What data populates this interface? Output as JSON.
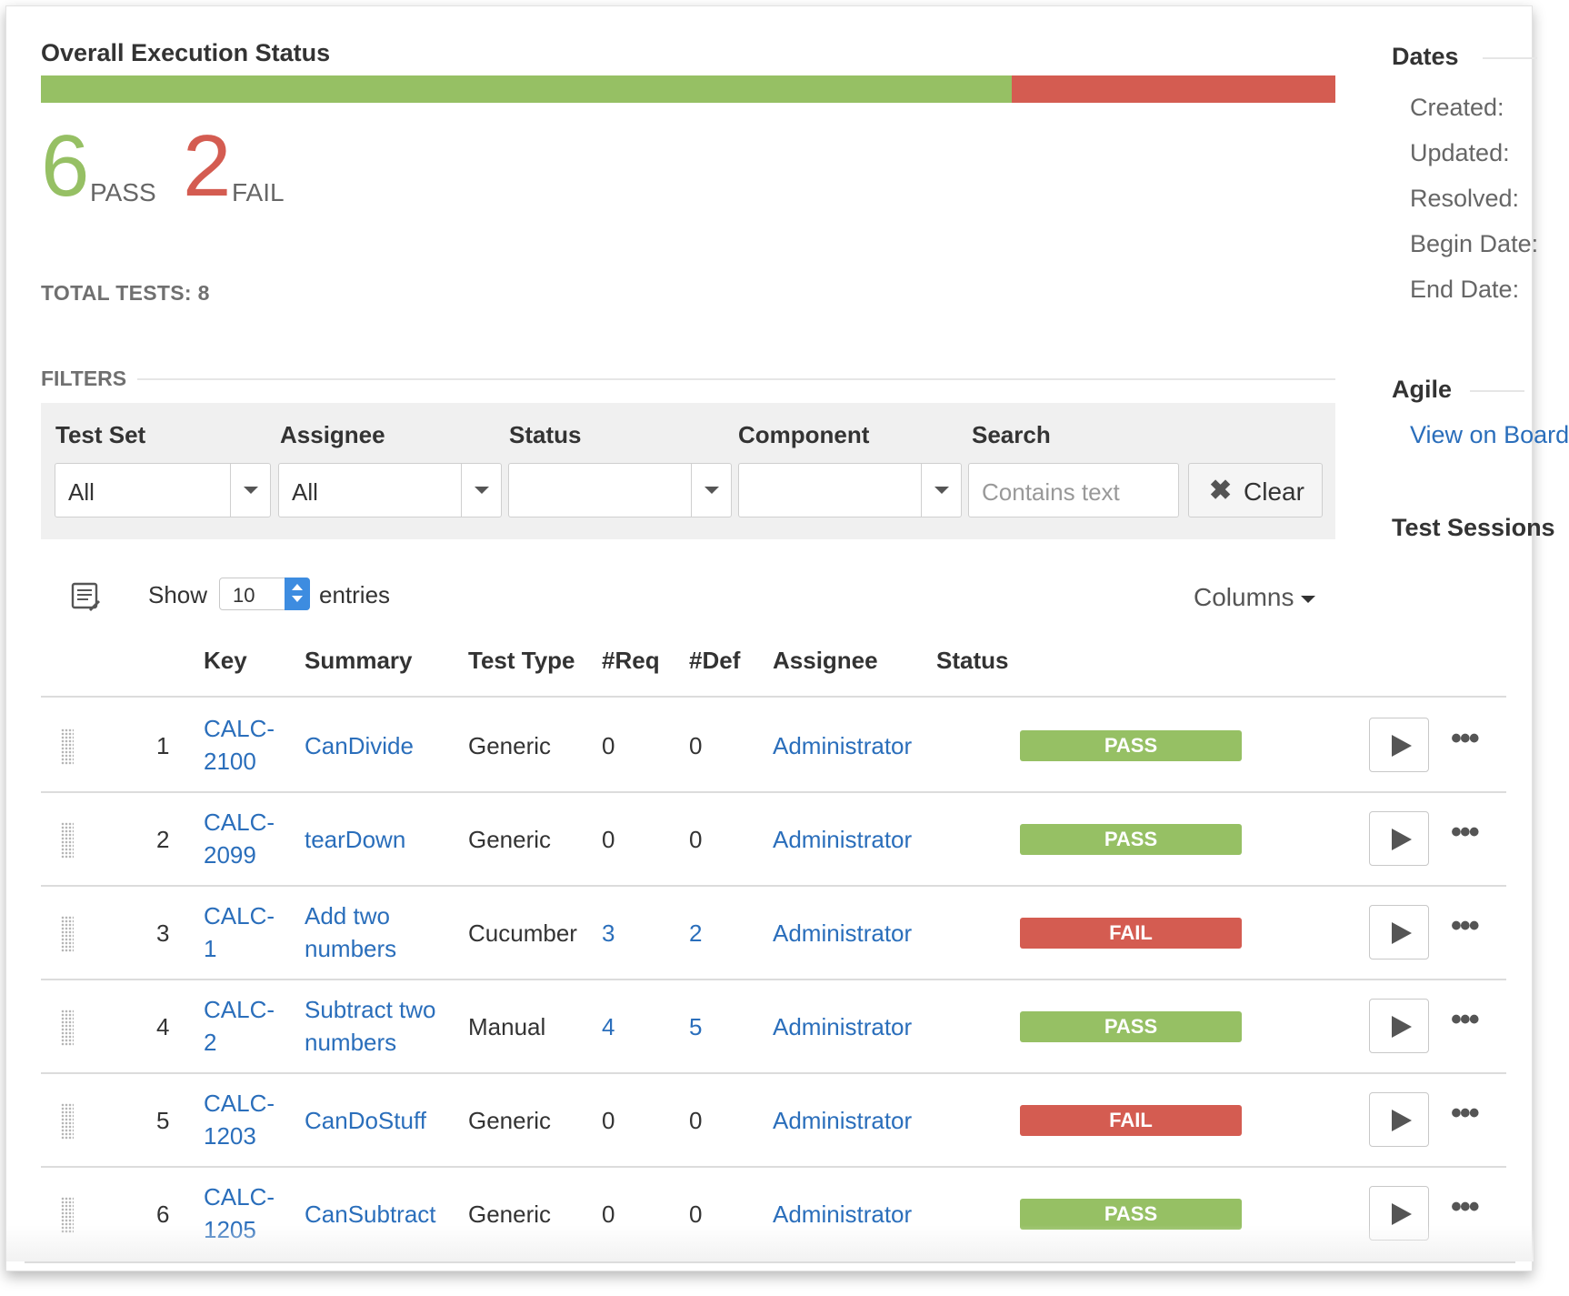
{
  "colors": {
    "pass": "#96c064",
    "fail": "#d45c51",
    "link": "#2a6ebb"
  },
  "status": {
    "title": "Overall Execution Status",
    "pass_count": "6",
    "pass_label": "PASS",
    "fail_count": "2",
    "fail_label": "FAIL",
    "total": "TOTAL TESTS: 8",
    "pass_fraction": 0.75,
    "fail_fraction": 0.25
  },
  "filters": {
    "heading": "FILTERS",
    "test_set": {
      "label": "Test Set",
      "value": "All"
    },
    "assignee": {
      "label": "Assignee",
      "value": "All"
    },
    "status": {
      "label": "Status",
      "value": ""
    },
    "component": {
      "label": "Component",
      "value": ""
    },
    "search": {
      "label": "Search",
      "placeholder": "Contains text",
      "value": ""
    },
    "clear_label": "Clear"
  },
  "toolbar": {
    "show_label": "Show",
    "page_length": "10",
    "entries_label": "entries",
    "columns_label": "Columns"
  },
  "table": {
    "headers": {
      "key": "Key",
      "summary": "Summary",
      "test_type": "Test Type",
      "req": "#Req",
      "def": "#Def",
      "assignee": "Assignee",
      "status": "Status"
    },
    "rows": [
      {
        "index": "1",
        "key_a": "CALC-",
        "key_b": "2100",
        "summary_a": "CanDivide",
        "summary_b": "",
        "test_type": "Generic",
        "req": "0",
        "def": "0",
        "assignee": "Administrator",
        "status": "PASS"
      },
      {
        "index": "2",
        "key_a": "CALC-",
        "key_b": "2099",
        "summary_a": "tearDown",
        "summary_b": "",
        "test_type": "Generic",
        "req": "0",
        "def": "0",
        "assignee": "Administrator",
        "status": "PASS"
      },
      {
        "index": "3",
        "key_a": "CALC-",
        "key_b": "1",
        "summary_a": "Add two",
        "summary_b": "numbers",
        "test_type": "Cucumber",
        "req": "3",
        "def": "2",
        "assignee": "Administrator",
        "status": "FAIL"
      },
      {
        "index": "4",
        "key_a": "CALC-",
        "key_b": "2",
        "summary_a": "Subtract two",
        "summary_b": "numbers",
        "test_type": "Manual",
        "req": "4",
        "def": "5",
        "assignee": "Administrator",
        "status": "PASS"
      },
      {
        "index": "5",
        "key_a": "CALC-",
        "key_b": "1203",
        "summary_a": "CanDoStuff",
        "summary_b": "",
        "test_type": "Generic",
        "req": "0",
        "def": "0",
        "assignee": "Administrator",
        "status": "FAIL"
      },
      {
        "index": "6",
        "key_a": "CALC-",
        "key_b": "1205",
        "summary_a": "CanSubtract",
        "summary_b": "",
        "test_type": "Generic",
        "req": "0",
        "def": "0",
        "assignee": "Administrator",
        "status": "PASS"
      }
    ]
  },
  "sidebar": {
    "dates_heading": "Dates",
    "created": "Created:",
    "updated": "Updated:",
    "resolved": "Resolved:",
    "begin_date": "Begin Date:",
    "end_date": "End Date:",
    "agile_heading": "Agile",
    "agile_link": "View on Board",
    "test_sessions_heading": "Test Sessions"
  },
  "icons": {
    "list": "list-edit-icon",
    "clear": "close-icon",
    "play": "play-icon",
    "more": "more-icon",
    "drag": "drag-handle-icon",
    "caret": "caret-down-icon"
  }
}
